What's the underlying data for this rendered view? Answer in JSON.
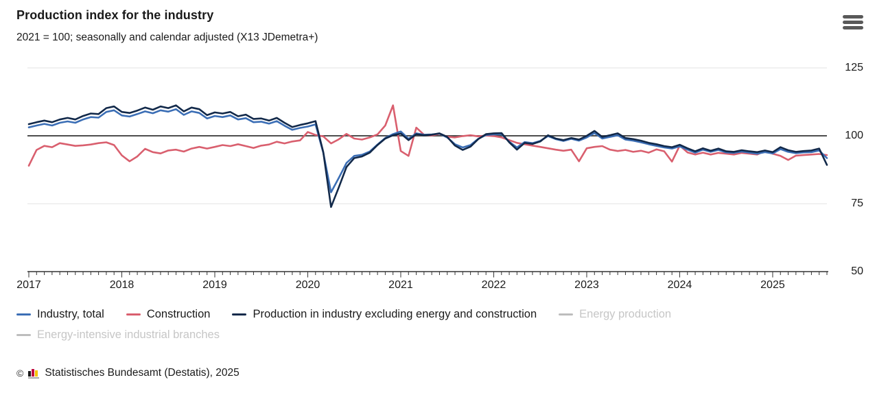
{
  "header": {
    "title": "Production index for the industry",
    "subtitle": "2021 = 100; seasonally and calendar adjusted (X13 JDemetra+)"
  },
  "menu": {
    "icon": "hamburger"
  },
  "chart_data": {
    "type": "line",
    "title": "Production index for the industry",
    "index_note": "2021 = 100",
    "frequency": "monthly",
    "x_start": "2017-01",
    "x_end": "2025-08",
    "x_tick_years": [
      "2017",
      "2018",
      "2019",
      "2020",
      "2021",
      "2022",
      "2023",
      "2024",
      "2025"
    ],
    "y_ticks": [
      125,
      100,
      75,
      50
    ],
    "ylim": [
      50,
      131
    ],
    "reference_line": 100,
    "light_gridlines": [
      125,
      75
    ],
    "grid_color": "#e3e3e3",
    "reference_line_color": "#4d4d4d",
    "axis_color": "#333333",
    "series": [
      {
        "name": "Industry, total",
        "color": "#3b6eb5",
        "values": [
          103.1,
          103.8,
          104.4,
          103.8,
          104.8,
          105.3,
          104.8,
          106.0,
          106.9,
          106.7,
          108.8,
          109.4,
          107.5,
          107.1,
          108.0,
          109.0,
          108.3,
          109.4,
          108.9,
          109.8,
          107.7,
          109.0,
          108.4,
          106.4,
          107.3,
          106.9,
          107.5,
          106.0,
          106.5,
          105.0,
          105.2,
          104.5,
          105.4,
          103.7,
          102.2,
          102.9,
          103.4,
          104.2,
          93.8,
          79.2,
          84.5,
          90.0,
          92.6,
          93.0,
          94.2,
          96.8,
          99.2,
          100.6,
          101.6,
          98.9,
          100.9,
          100.4,
          100.5,
          100.8,
          99.4,
          96.9,
          95.7,
          96.6,
          98.9,
          100.3,
          100.5,
          100.6,
          97.8,
          95.7,
          97.7,
          97.3,
          98.1,
          99.9,
          98.8,
          98.1,
          98.9,
          98.2,
          99.4,
          101.0,
          99.0,
          99.6,
          100.2,
          98.6,
          98.2,
          97.6,
          96.9,
          96.3,
          95.7,
          95.3,
          96.1,
          94.9,
          93.8,
          94.9,
          94.1,
          94.8,
          93.9,
          93.7,
          94.2,
          93.8,
          93.4,
          94.0,
          93.5,
          95.1,
          94.1,
          93.6,
          93.9,
          94.0,
          94.6,
          91.8
        ]
      },
      {
        "name": "Construction",
        "color": "#d95f6e",
        "values": [
          89.0,
          94.8,
          96.3,
          95.8,
          97.3,
          96.8,
          96.3,
          96.5,
          96.8,
          97.3,
          97.6,
          96.6,
          92.8,
          90.6,
          92.4,
          95.2,
          94.0,
          93.5,
          94.6,
          94.9,
          94.2,
          95.3,
          95.9,
          95.3,
          95.9,
          96.6,
          96.2,
          96.9,
          96.2,
          95.5,
          96.4,
          96.8,
          97.8,
          97.2,
          97.9,
          98.3,
          101.4,
          100.3,
          99.8,
          97.2,
          98.7,
          100.7,
          99.0,
          98.6,
          99.4,
          100.5,
          103.8,
          111.2,
          94.4,
          92.6,
          103.0,
          100.4,
          100.1,
          100.7,
          99.7,
          99.4,
          99.9,
          100.2,
          99.8,
          100.1,
          99.9,
          99.4,
          98.4,
          97.4,
          96.9,
          96.4,
          95.9,
          95.4,
          94.9,
          94.5,
          94.9,
          90.6,
          95.4,
          95.9,
          96.2,
          94.9,
          94.4,
          94.8,
          94.1,
          94.5,
          93.8,
          95.0,
          94.3,
          90.5,
          96.4,
          93.9,
          93.1,
          93.8,
          93.1,
          93.7,
          93.4,
          93.1,
          93.7,
          93.4,
          93.1,
          94.4,
          93.4,
          92.6,
          91.1,
          92.7,
          92.9,
          93.1,
          93.3,
          92.9
        ]
      },
      {
        "name": "Production in industry excluding energy and construction",
        "color": "#12294a",
        "values": [
          104.3,
          105.0,
          105.6,
          105.0,
          106.0,
          106.6,
          106.0,
          107.3,
          108.2,
          108.0,
          110.2,
          110.8,
          108.8,
          108.4,
          109.3,
          110.4,
          109.6,
          110.8,
          110.2,
          111.2,
          109.0,
          110.4,
          109.8,
          107.6,
          108.6,
          108.2,
          108.8,
          107.2,
          107.8,
          106.2,
          106.4,
          105.6,
          106.6,
          104.8,
          103.2,
          104.0,
          104.6,
          105.4,
          94.0,
          73.8,
          81.0,
          88.5,
          91.8,
          92.4,
          93.8,
          96.6,
          99.0,
          100.2,
          100.8,
          98.4,
          100.6,
          100.2,
          100.4,
          100.9,
          99.6,
          96.4,
          94.8,
          96.0,
          98.8,
          100.6,
          100.9,
          101.0,
          97.6,
          94.9,
          97.4,
          97.0,
          97.9,
          100.2,
          99.0,
          98.4,
          99.2,
          98.6,
          100.0,
          101.8,
          99.6,
          100.2,
          100.9,
          99.2,
          98.8,
          98.2,
          97.4,
          96.9,
          96.2,
          95.8,
          96.7,
          95.4,
          94.3,
          95.4,
          94.5,
          95.3,
          94.3,
          94.1,
          94.7,
          94.3,
          94.0,
          94.6,
          94.0,
          95.8,
          94.7,
          94.1,
          94.4,
          94.6,
          95.3,
          89.3
        ]
      }
    ],
    "inactive_series": [
      "Energy production",
      "Energy-intensive industrial branches"
    ]
  },
  "legend": {
    "items": [
      {
        "label": "Industry, total",
        "color": "#3b6eb5",
        "active": true
      },
      {
        "label": "Construction",
        "color": "#d95f6e",
        "active": true
      },
      {
        "label": "Production in industry excluding energy and construction",
        "color": "#12294a",
        "active": true
      },
      {
        "label": "Energy production",
        "color": "#bdbdbd",
        "active": false
      },
      {
        "label": "Energy-intensive industrial branches",
        "color": "#bdbdbd",
        "active": false
      }
    ]
  },
  "footer": {
    "copyright": "©",
    "source": "Statistisches Bundesamt (Destatis), 2025",
    "logo_bar_colors": [
      "#1a1a1a",
      "#c00d3e",
      "#f5c400"
    ]
  }
}
